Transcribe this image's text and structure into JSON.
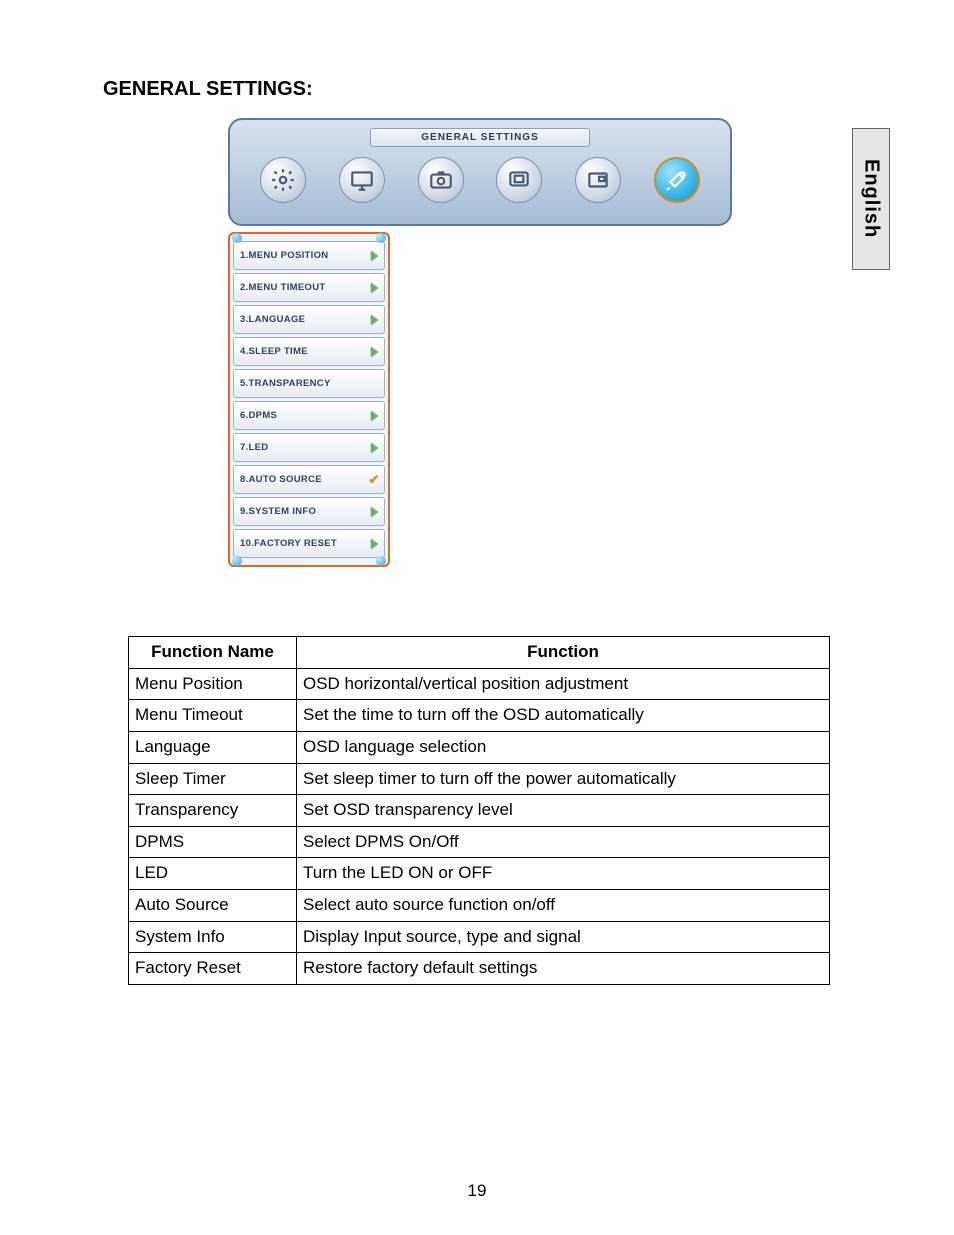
{
  "page": {
    "title": "GENERAL SETTINGS:",
    "language_tab": "English",
    "page_number": "19"
  },
  "osd": {
    "title": "GENERAL SETTINGS",
    "title_bg": "#e9eef5",
    "panel_bg_top": "#d9e3ee",
    "panel_bg_bottom": "#a7bcd4",
    "panel_border": "#5a7aa6",
    "selected_index": 5,
    "icons": [
      {
        "name": "gear-icon"
      },
      {
        "name": "monitor-icon"
      },
      {
        "name": "camera-icon"
      },
      {
        "name": "display-icon"
      },
      {
        "name": "picture-icon"
      },
      {
        "name": "tools-icon"
      }
    ],
    "submenu_border": "#d46a2b",
    "item_bg_top": "#ffffff",
    "item_bg_bottom": "#e6ecf3",
    "item_border": "#9cb1c9",
    "arrow_color": "#5fb368",
    "check_color": "#d68a2e",
    "items": [
      {
        "label": "1.MENU POSITION",
        "marker": "arrow"
      },
      {
        "label": "2.MENU TIMEOUT",
        "marker": "arrow"
      },
      {
        "label": "3.LANGUAGE",
        "marker": "arrow"
      },
      {
        "label": "4.SLEEP TIME",
        "marker": "arrow"
      },
      {
        "label": "5.TRANSPARENCY",
        "marker": "none"
      },
      {
        "label": "6.DPMS",
        "marker": "arrow"
      },
      {
        "label": "7.LED",
        "marker": "arrow"
      },
      {
        "label": "8.AUTO SOURCE",
        "marker": "check"
      },
      {
        "label": "9.SYSTEM INFO",
        "marker": "arrow"
      },
      {
        "label": "10.FACTORY RESET",
        "marker": "arrow"
      }
    ]
  },
  "table": {
    "headers": [
      "Function Name",
      "Function"
    ],
    "rows": [
      [
        "Menu Position",
        "OSD horizontal/vertical position adjustment"
      ],
      [
        "Menu Timeout",
        "Set the time to turn off the OSD automatically"
      ],
      [
        "Language",
        "OSD language selection"
      ],
      [
        "Sleep Timer",
        "Set sleep timer to turn off the power automatically"
      ],
      [
        "Transparency",
        "Set OSD transparency level"
      ],
      [
        "DPMS",
        "Select DPMS On/Off"
      ],
      [
        "LED",
        "Turn the LED ON or OFF"
      ],
      [
        "Auto Source",
        "Select auto source function on/off"
      ],
      [
        "System Info",
        "Display Input source, type and signal"
      ],
      [
        "Factory Reset",
        "Restore factory default settings"
      ]
    ]
  }
}
